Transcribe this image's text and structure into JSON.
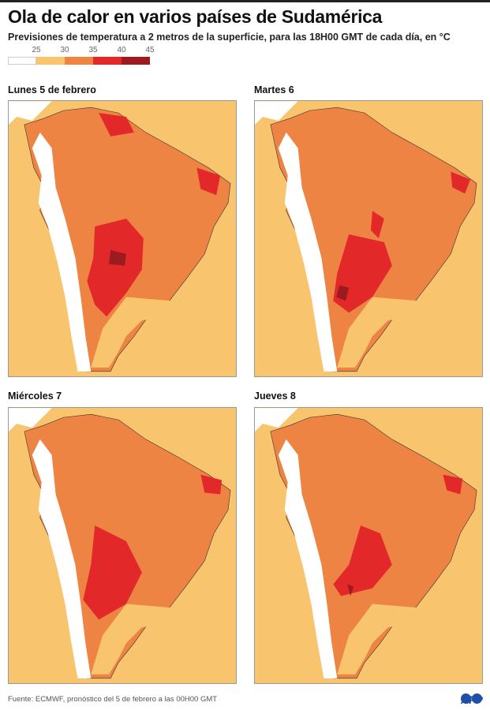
{
  "title": "Ola de calor en varios países de Sudamérica",
  "subtitle": "Previsiones de temperatura a 2 metros de la superficie, para las 18H00 GMT de cada día, en °C",
  "legend": {
    "ticks": [
      "25",
      "30",
      "35",
      "40",
      "45"
    ],
    "colors": [
      "#ffffff",
      "#f8c46d",
      "#ee8444",
      "#e3282a",
      "#9c1b1f"
    ]
  },
  "panels": [
    {
      "label": "Lunes 5 de febrero"
    },
    {
      "label": "Martes 6"
    },
    {
      "label": "Miércoles 7"
    },
    {
      "label": "Jueves 8"
    }
  ],
  "source": "Fuente: ECMWF, pronóstico del 5 de febrero a las 00H00 GMT",
  "logo": "AFP"
}
